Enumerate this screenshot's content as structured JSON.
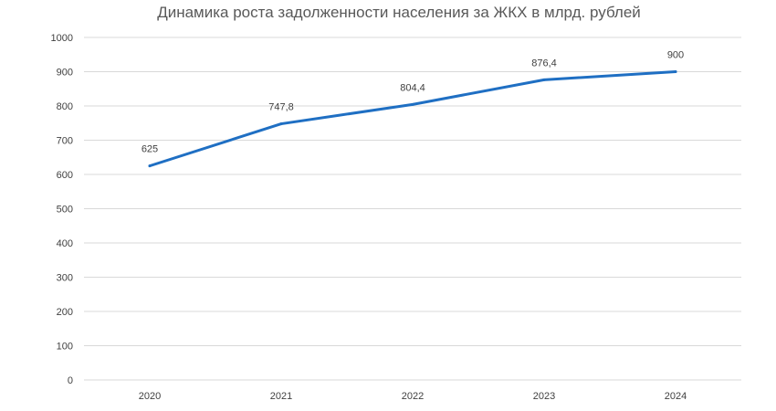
{
  "chart_data": {
    "type": "line",
    "title": "Динамика роста задолженности населения за ЖКХ в млрд. рублей",
    "xlabel": "",
    "ylabel": "",
    "categories": [
      "2020",
      "2021",
      "2022",
      "2023",
      "2024"
    ],
    "series": [
      {
        "values": [
          625,
          747.8,
          804.4,
          876.4,
          900
        ],
        "value_labels": [
          "625",
          "747,8",
          "804,4",
          "876,4",
          "900"
        ],
        "color": "#1f6fc3"
      }
    ],
    "ylim": [
      0,
      1000
    ],
    "y_ticks": [
      0,
      100,
      200,
      300,
      400,
      500,
      600,
      700,
      800,
      900,
      1000
    ],
    "grid": true,
    "legend": "none"
  }
}
